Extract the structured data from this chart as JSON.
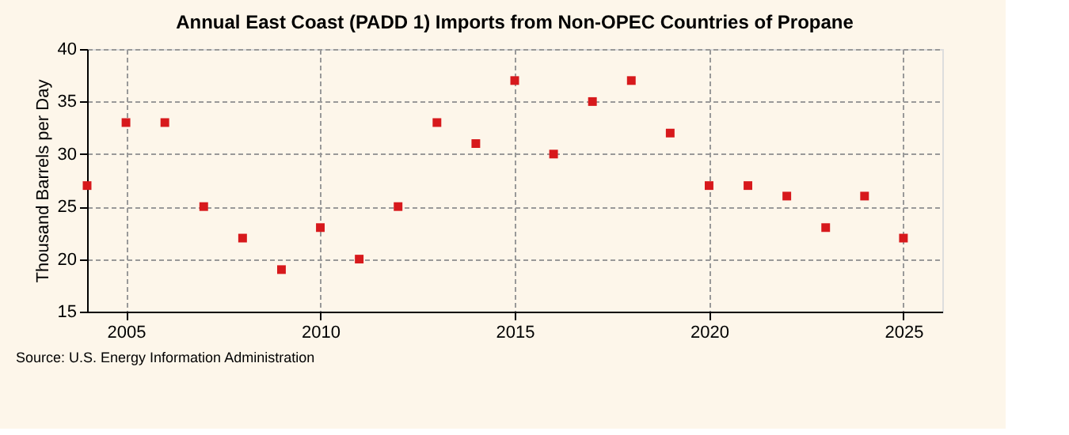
{
  "chart_data": {
    "type": "scatter",
    "title": "Annual East Coast (PADD 1) Imports from Non-OPEC Countries of Propane",
    "ylabel": "Thousand Barrels per Day",
    "x": [
      2004,
      2005,
      2006,
      2007,
      2008,
      2009,
      2010,
      2011,
      2012,
      2013,
      2014,
      2015,
      2016,
      2017,
      2018,
      2019,
      2020,
      2021,
      2022,
      2023,
      2024,
      2025
    ],
    "series": [
      {
        "color": "#d7191c",
        "values": [
          27,
          33,
          33,
          25,
          22,
          19,
          23,
          20,
          25,
          33,
          31,
          37,
          30,
          35,
          37,
          32,
          27,
          27,
          26,
          23,
          26,
          22
        ]
      }
    ],
    "xlim": [
      2004,
      2026
    ],
    "xticks": [
      2005,
      2010,
      2015,
      2020,
      2025
    ],
    "ylim": [
      15,
      40
    ],
    "yticks": [
      15,
      20,
      25,
      30,
      35,
      40
    ],
    "grid": true,
    "marker": "square",
    "legend": false,
    "annotations": [
      "Source: U.S. Energy Information Administration"
    ]
  }
}
